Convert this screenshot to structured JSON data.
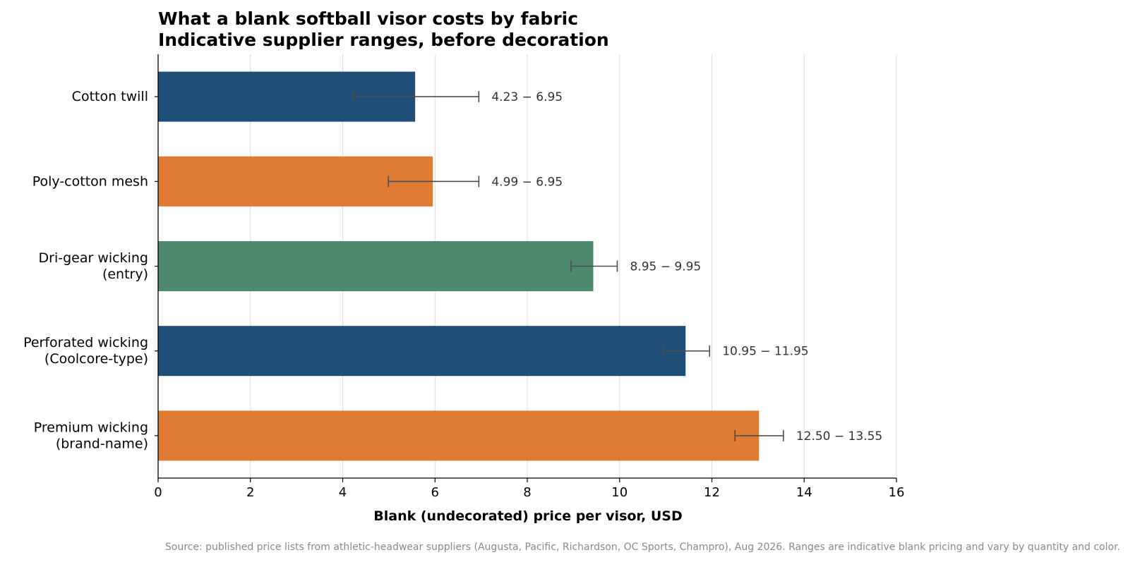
{
  "chart_data": {
    "type": "bar",
    "orientation": "horizontal",
    "title": "What a blank softball visor costs by fabric",
    "subtitle": "Indicative supplier ranges, before decoration",
    "xlabel": "Blank (undecorated) price per visor, USD",
    "ylabel": "",
    "xlim": [
      0,
      16
    ],
    "xticks": [
      0,
      2,
      4,
      6,
      8,
      10,
      12,
      14,
      16
    ],
    "grid": "vertical",
    "categories": [
      "Cotton twill",
      "Poly-cotton mesh",
      "Dri-gear wicking (entry)",
      "Perforated wicking (Coolcore-type)",
      "Premium wicking (brand-name)"
    ],
    "category_lines": [
      [
        "Cotton twill"
      ],
      [
        "Poly-cotton mesh"
      ],
      [
        "Dri-gear wicking",
        "(entry)"
      ],
      [
        "Perforated wicking",
        "(Coolcore-type)"
      ],
      [
        "Premium wicking",
        "(brand-name)"
      ]
    ],
    "values": [
      5.57,
      5.95,
      9.43,
      11.43,
      13.02
    ],
    "ranges": [
      [
        4.23,
        6.95
      ],
      [
        4.99,
        6.95
      ],
      [
        8.95,
        9.95
      ],
      [
        10.95,
        11.95
      ],
      [
        12.5,
        13.55
      ]
    ],
    "range_labels": [
      "4.23 − 6.95",
      "4.99 − 6.95",
      "8.95 − 9.95",
      "10.95 − 11.95",
      "12.50 − 13.55"
    ],
    "colors": [
      "#1f4e79",
      "#e07b33",
      "#4e8b6e",
      "#1f4e79",
      "#e07b33"
    ],
    "errorbar_color": "#4d4d4d",
    "grid_color": "#dddddd"
  },
  "source_note": "Source: published price lists from athletic-headwear suppliers (Augusta, Pacific, Richardson, OC Sports, Champro), Aug 2026. Ranges are indicative blank pricing and vary by quantity and color."
}
